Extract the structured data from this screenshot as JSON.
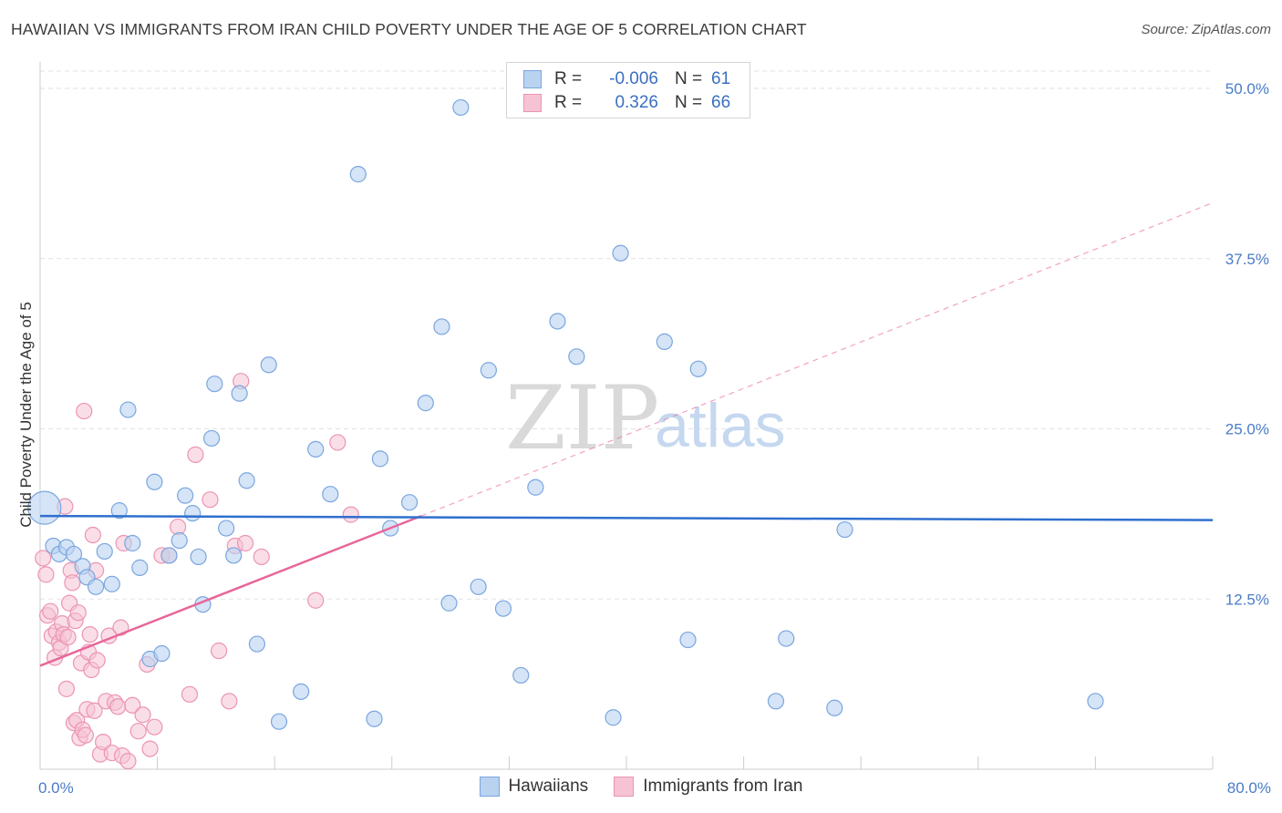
{
  "header": {
    "title": "HAWAIIAN VS IMMIGRANTS FROM IRAN CHILD POVERTY UNDER THE AGE OF 5 CORRELATION CHART",
    "source": "Source: ZipAtlas.com"
  },
  "watermark": {
    "part1": "ZIP",
    "part2": "atlas"
  },
  "colors": {
    "blue_fill": "#b9d2f0",
    "blue_stroke": "#7aa6df",
    "blue_line": "#2f6fce",
    "pink_fill": "#f6c3d4",
    "pink_stroke": "#ec94b3",
    "pink_line": "#e8669a",
    "grid": "#e2e2e2",
    "axis": "#cccccc",
    "tick_text": "#4a7cc7"
  },
  "legend": {
    "rows": [
      {
        "r_label": "R =",
        "r_value": "-0.006",
        "n_label": "N =",
        "n_value": "61"
      },
      {
        "r_label": "R =",
        "r_value": "0.326",
        "n_label": "N =",
        "n_value": "66"
      }
    ]
  },
  "bottom_legend": {
    "series1": "Hawaiians",
    "series2": "Immigrants from Iran"
  },
  "chart_data": {
    "type": "scatter",
    "title": "HAWAIIAN VS IMMIGRANTS FROM IRAN CHILD POVERTY UNDER THE AGE OF 5 CORRELATION CHART",
    "xlabel": "",
    "ylabel": "Child Poverty Under the Age of 5",
    "xlim": [
      0,
      80
    ],
    "ylim": [
      0,
      52
    ],
    "x_tick_labels": [
      {
        "value": 0,
        "label": "0.0%"
      },
      {
        "value": 80,
        "label": "80.0%"
      }
    ],
    "x_minor_ticks": [
      8,
      16,
      24,
      32,
      40,
      48,
      56,
      64,
      72,
      80
    ],
    "y_ticks": [
      {
        "value": 12.5,
        "label": "12.5%"
      },
      {
        "value": 25.0,
        "label": "25.0%"
      },
      {
        "value": 37.5,
        "label": "37.5%"
      },
      {
        "value": 50.0,
        "label": "50.0%"
      }
    ],
    "series": [
      {
        "name": "Hawaiians",
        "trend": {
          "x": [
            0,
            80
          ],
          "y": [
            18.6,
            18.3
          ],
          "style": "solid"
        },
        "points": [
          [
            0.3,
            19.2
          ],
          [
            0.9,
            16.4
          ],
          [
            1.3,
            15.8
          ],
          [
            1.8,
            16.3
          ],
          [
            2.3,
            15.8
          ],
          [
            2.9,
            14.9
          ],
          [
            3.2,
            14.1
          ],
          [
            3.8,
            13.4
          ],
          [
            4.4,
            16.0
          ],
          [
            4.9,
            13.6
          ],
          [
            5.4,
            19.0
          ],
          [
            6.0,
            26.4
          ],
          [
            6.3,
            16.6
          ],
          [
            6.8,
            14.8
          ],
          [
            7.5,
            8.1
          ],
          [
            7.8,
            21.1
          ],
          [
            8.3,
            8.5
          ],
          [
            8.8,
            15.7
          ],
          [
            9.5,
            16.8
          ],
          [
            9.9,
            20.1
          ],
          [
            10.4,
            18.8
          ],
          [
            10.8,
            15.6
          ],
          [
            11.1,
            12.1
          ],
          [
            11.7,
            24.3
          ],
          [
            11.9,
            28.3
          ],
          [
            12.7,
            17.7
          ],
          [
            13.2,
            15.7
          ],
          [
            13.6,
            27.6
          ],
          [
            14.1,
            21.2
          ],
          [
            14.8,
            9.2
          ],
          [
            15.6,
            29.7
          ],
          [
            16.3,
            3.5
          ],
          [
            17.8,
            5.7
          ],
          [
            18.8,
            23.5
          ],
          [
            19.8,
            20.2
          ],
          [
            21.7,
            43.7
          ],
          [
            22.8,
            3.7
          ],
          [
            23.2,
            22.8
          ],
          [
            23.9,
            17.7
          ],
          [
            25.2,
            19.6
          ],
          [
            26.3,
            26.9
          ],
          [
            27.4,
            32.5
          ],
          [
            27.9,
            12.2
          ],
          [
            28.7,
            48.6
          ],
          [
            29.9,
            13.4
          ],
          [
            30.6,
            29.3
          ],
          [
            31.6,
            11.8
          ],
          [
            32.8,
            6.9
          ],
          [
            33.8,
            20.7
          ],
          [
            35.3,
            32.9
          ],
          [
            36.6,
            30.3
          ],
          [
            39.1,
            3.8
          ],
          [
            39.6,
            37.9
          ],
          [
            42.6,
            31.4
          ],
          [
            44.2,
            9.5
          ],
          [
            44.9,
            29.4
          ],
          [
            50.2,
            5.0
          ],
          [
            50.9,
            9.6
          ],
          [
            54.2,
            4.5
          ],
          [
            54.9,
            17.6
          ],
          [
            72.0,
            5.0
          ]
        ]
      },
      {
        "name": "Immigrants from Iran",
        "trend": {
          "x": [
            0,
            26
          ],
          "y": [
            7.6,
            18.6
          ],
          "style": "solid",
          "extension": {
            "x": [
              26,
              80
            ],
            "y": [
              18.6,
              41.6
            ],
            "style": "dashed"
          }
        },
        "points": [
          [
            0.2,
            15.5
          ],
          [
            0.4,
            14.3
          ],
          [
            0.5,
            11.3
          ],
          [
            0.7,
            11.6
          ],
          [
            0.8,
            9.8
          ],
          [
            1.0,
            8.2
          ],
          [
            1.1,
            10.1
          ],
          [
            1.3,
            9.3
          ],
          [
            1.4,
            8.9
          ],
          [
            1.5,
            10.7
          ],
          [
            1.6,
            9.9
          ],
          [
            1.7,
            19.3
          ],
          [
            1.8,
            5.9
          ],
          [
            1.9,
            9.7
          ],
          [
            2.0,
            12.2
          ],
          [
            2.1,
            14.6
          ],
          [
            2.2,
            13.7
          ],
          [
            2.3,
            3.4
          ],
          [
            2.4,
            10.9
          ],
          [
            2.5,
            3.6
          ],
          [
            2.6,
            11.5
          ],
          [
            2.7,
            2.3
          ],
          [
            2.8,
            7.8
          ],
          [
            2.9,
            2.9
          ],
          [
            3.0,
            26.3
          ],
          [
            3.1,
            2.5
          ],
          [
            3.2,
            4.4
          ],
          [
            3.3,
            8.6
          ],
          [
            3.4,
            9.9
          ],
          [
            3.5,
            7.3
          ],
          [
            3.6,
            17.2
          ],
          [
            3.7,
            4.3
          ],
          [
            3.8,
            14.6
          ],
          [
            3.9,
            8.0
          ],
          [
            4.1,
            1.1
          ],
          [
            4.3,
            2.0
          ],
          [
            4.5,
            5.0
          ],
          [
            4.7,
            9.8
          ],
          [
            4.9,
            1.2
          ],
          [
            5.1,
            4.9
          ],
          [
            5.3,
            4.6
          ],
          [
            5.5,
            10.4
          ],
          [
            5.6,
            1.0
          ],
          [
            5.7,
            16.6
          ],
          [
            6.0,
            0.6
          ],
          [
            6.3,
            4.7
          ],
          [
            6.7,
            2.8
          ],
          [
            7.0,
            4.0
          ],
          [
            7.3,
            7.7
          ],
          [
            7.5,
            1.5
          ],
          [
            7.8,
            3.1
          ],
          [
            8.3,
            15.7
          ],
          [
            8.8,
            15.7
          ],
          [
            9.4,
            17.8
          ],
          [
            10.2,
            5.5
          ],
          [
            10.6,
            23.1
          ],
          [
            11.6,
            19.8
          ],
          [
            12.2,
            8.7
          ],
          [
            12.9,
            5.0
          ],
          [
            13.3,
            16.4
          ],
          [
            13.7,
            28.5
          ],
          [
            14.0,
            16.6
          ],
          [
            15.1,
            15.6
          ],
          [
            18.8,
            12.4
          ],
          [
            20.3,
            24.0
          ],
          [
            21.2,
            18.7
          ]
        ]
      }
    ],
    "large_point": {
      "series": "Hawaiians",
      "x": 0.3,
      "y": 19.2
    }
  }
}
